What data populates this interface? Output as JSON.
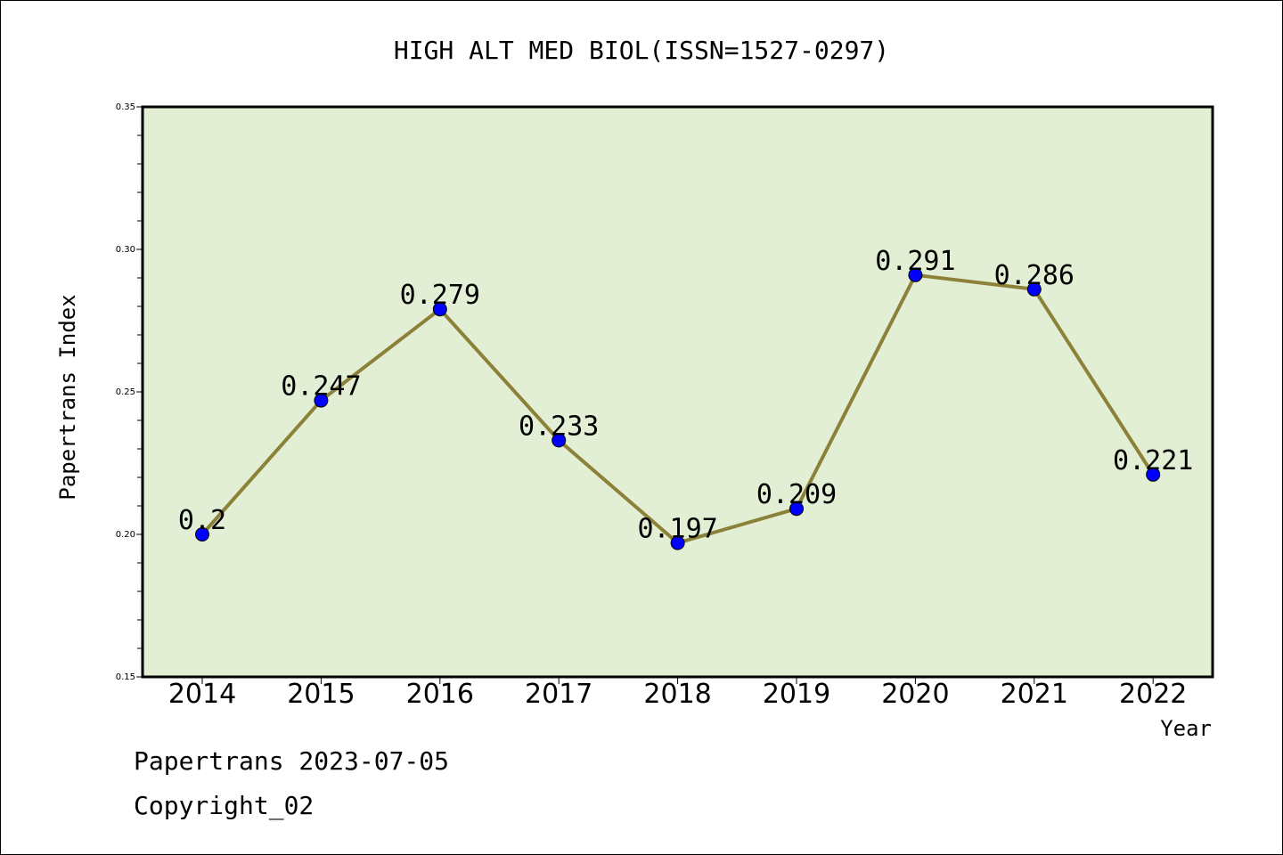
{
  "chart_data": {
    "type": "line",
    "title": "HIGH ALT MED BIOL(ISSN=1527-0297)",
    "xlabel": "Year",
    "ylabel": "Papertrans Index",
    "categories": [
      "2014",
      "2015",
      "2016",
      "2017",
      "2018",
      "2019",
      "2020",
      "2021",
      "2022"
    ],
    "series": [
      {
        "values": [
          0.2,
          0.247,
          0.279,
          0.233,
          0.197,
          0.209,
          0.291,
          0.286,
          0.221
        ],
        "labels": [
          "0.2",
          "0.247",
          "0.279",
          "0.233",
          "0.197",
          "0.209",
          "0.291",
          "0.286",
          "0.221"
        ]
      }
    ],
    "ylim": [
      0.15,
      0.35
    ],
    "yticks": [
      "0.15",
      "0.20",
      "0.25",
      "0.30",
      "0.35"
    ],
    "grid": false,
    "colors": {
      "plot_background": "#e2efd4",
      "line": "#8b8138",
      "marker": "#0000ff"
    }
  },
  "footer": {
    "line1": "Papertrans 2023-07-05",
    "line2": "Copyright_02"
  }
}
